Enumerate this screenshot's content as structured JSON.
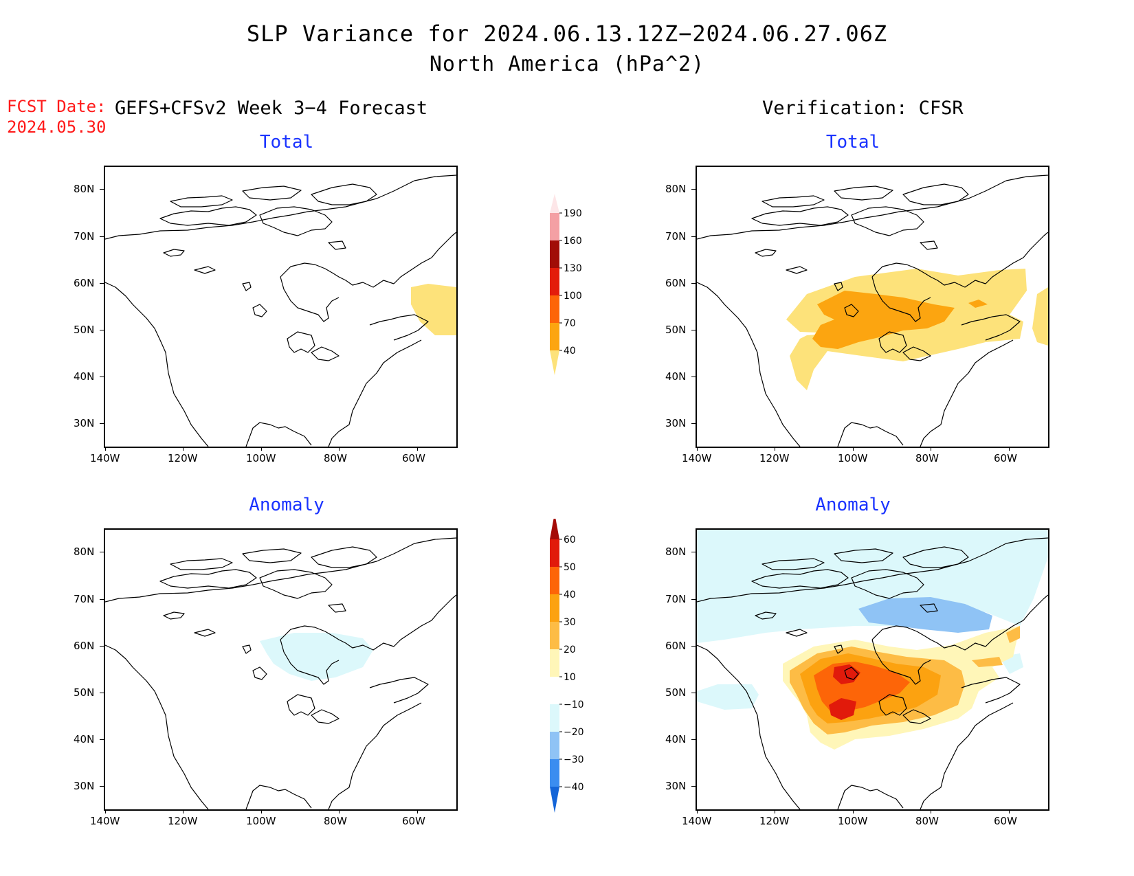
{
  "title": "SLP Variance for 2024.06.13.12Z−2024.06.27.06Z",
  "subtitle": "North America (hPa^2)",
  "fcst_label": "FCST Date:",
  "fcst_date": "2024.05.30",
  "left_header": "GEFS+CFSv2 Week 3−4 Forecast",
  "right_header": "Verification: CFSR",
  "panels": [
    {
      "id": "fcst-total",
      "subtitle": "Total"
    },
    {
      "id": "verif-total",
      "subtitle": "Total"
    },
    {
      "id": "fcst-anomaly",
      "subtitle": "Anomaly"
    },
    {
      "id": "verif-anomaly",
      "subtitle": "Anomaly"
    }
  ],
  "axes": {
    "lat_labels": [
      "80N",
      "70N",
      "60N",
      "50N",
      "40N",
      "30N"
    ],
    "lon_labels": [
      "140W",
      "120W",
      "100W",
      "80W",
      "60W"
    ]
  },
  "chart_data": {
    "type": "heatmap",
    "total_colorbar": {
      "levels": [
        "40",
        "70",
        "100",
        "130",
        "160",
        "190",
        "220"
      ],
      "colors": [
        "#fde27a",
        "#fca510",
        "#fd6508",
        "#e31c0b",
        "#a10d07",
        "#f4a0a4",
        "#fde6e8"
      ]
    },
    "anomaly_colorbar": {
      "levels": [
        "−40",
        "−30",
        "−20",
        "−10",
        "10",
        "20",
        "30",
        "40",
        "50",
        "60"
      ],
      "colors": [
        "#1465d8",
        "#3b8df0",
        "#8fc3f5",
        "#dcf8fb",
        "#ffffff",
        "#fff6b8",
        "#fdbc45",
        "#fca210",
        "#fd6508",
        "#e11a0b",
        "#a40b07"
      ]
    }
  }
}
